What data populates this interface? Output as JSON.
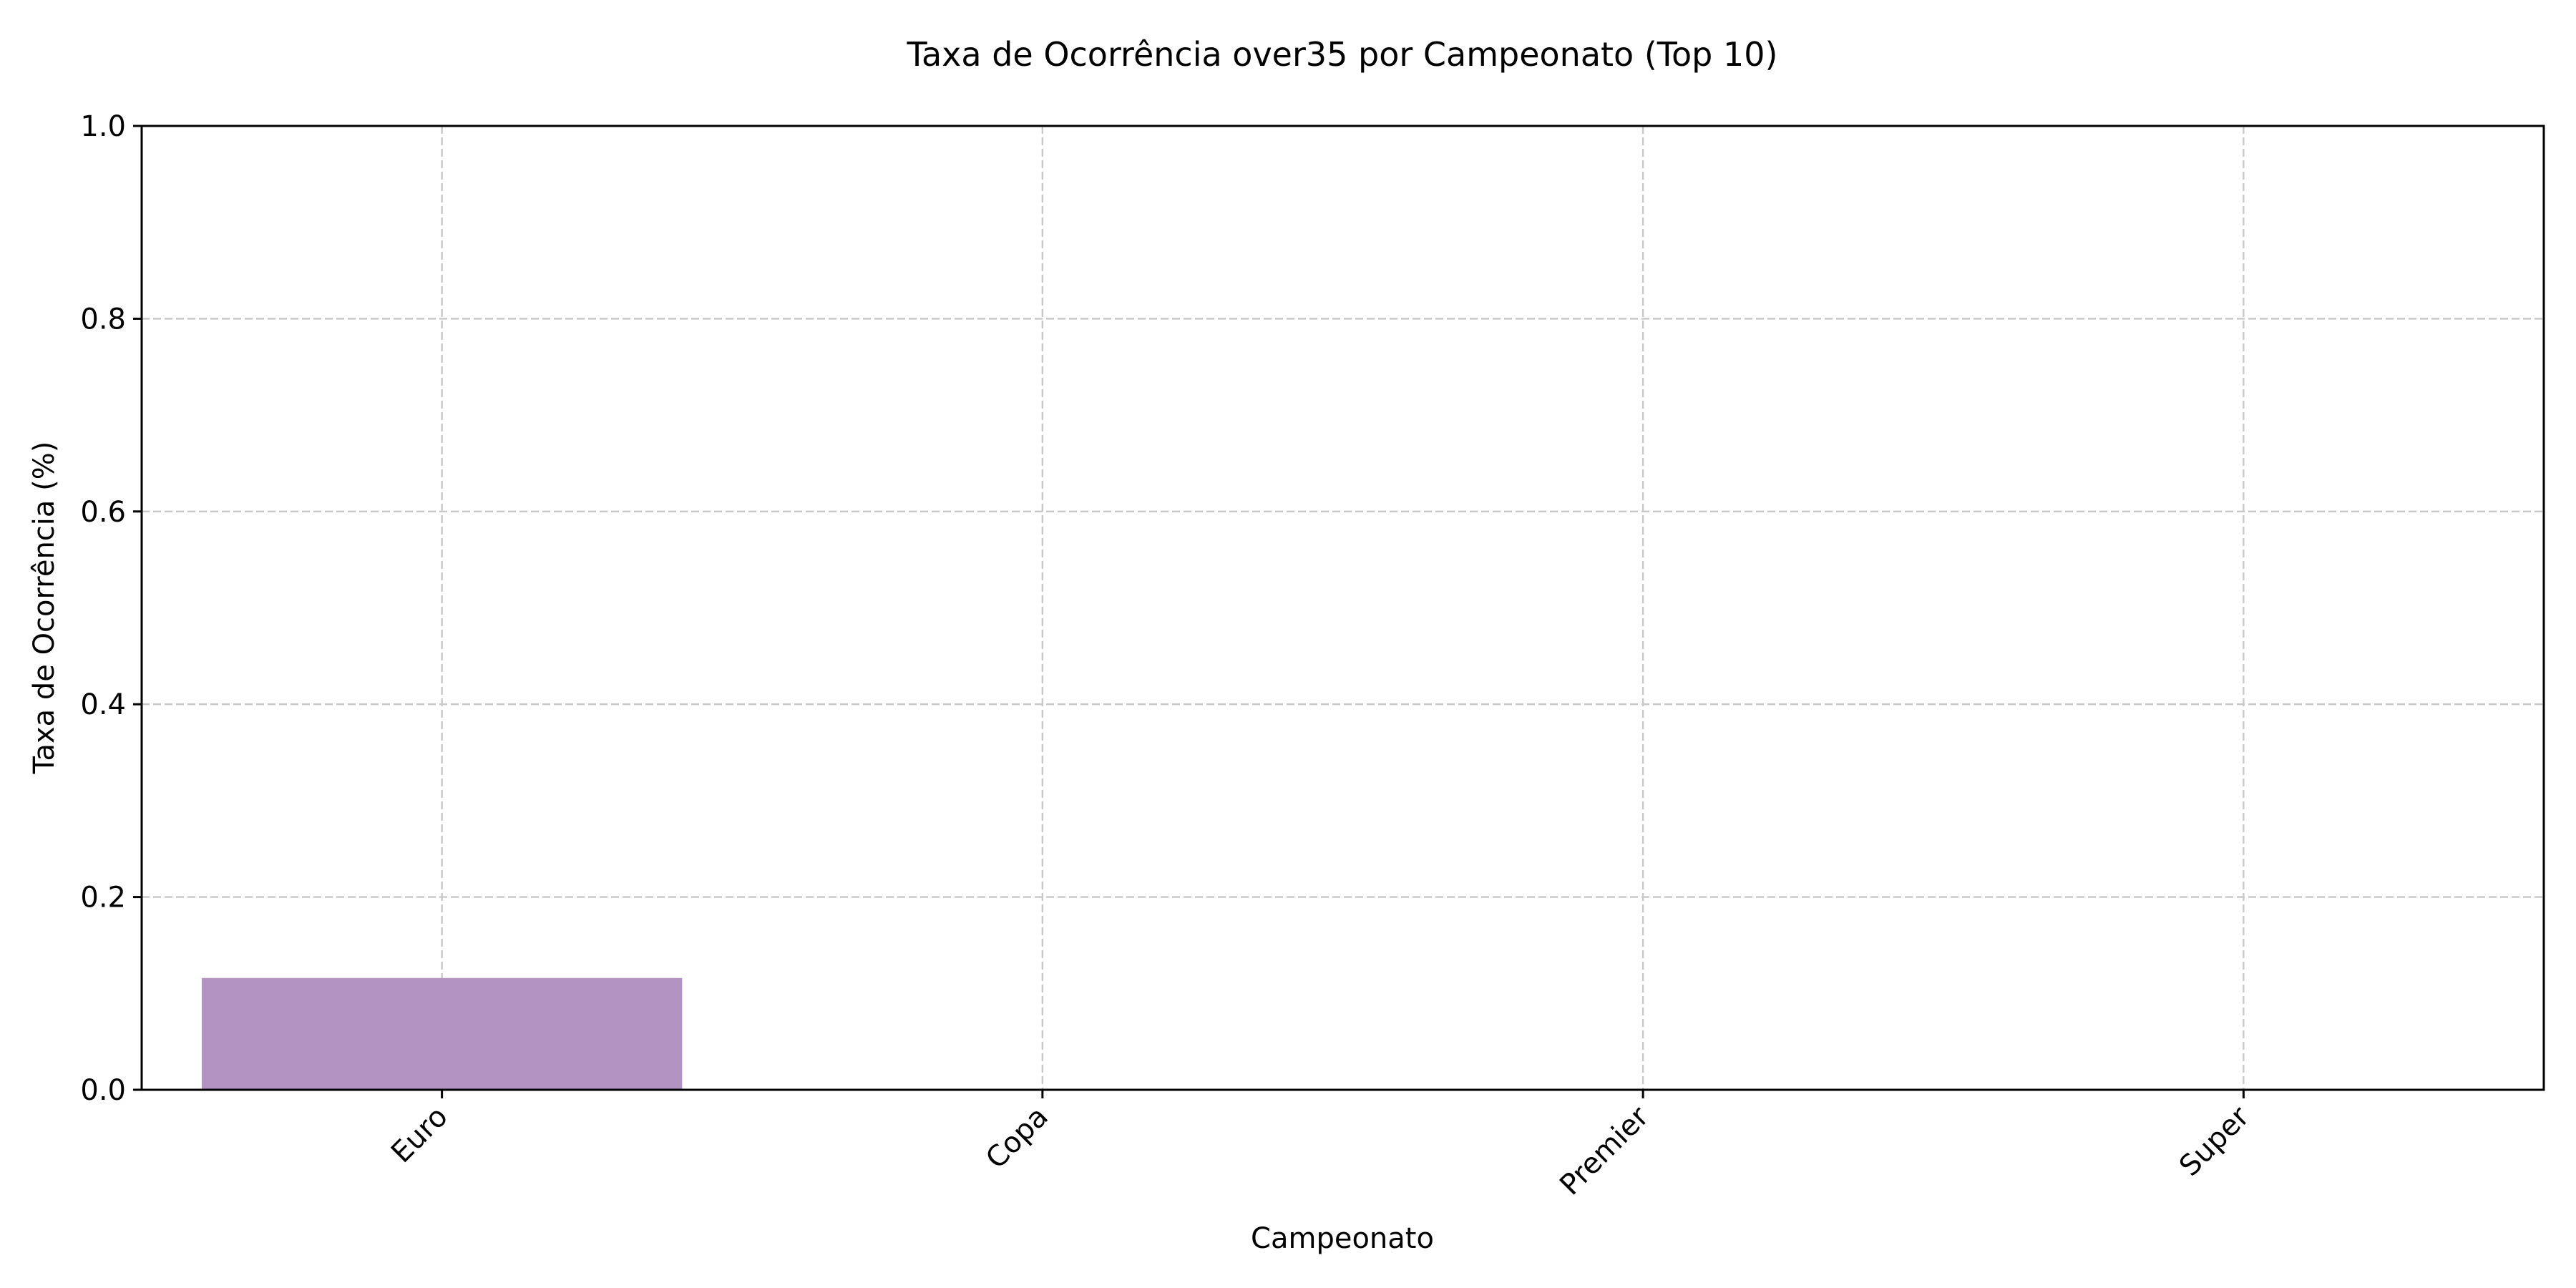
{
  "chart_data": {
    "type": "bar",
    "title": "Taxa de Ocorrência over35 por Campeonato (Top 10)",
    "xlabel": "Campeonato",
    "ylabel": "Taxa de Ocorrência (%)",
    "categories": [
      "Euro",
      "Copa",
      "Premier",
      "Super"
    ],
    "values": [
      0.116,
      0.0,
      0.0,
      0.0
    ],
    "ylim": [
      0.0,
      1.0
    ],
    "yticks": [
      "0.0",
      "0.2",
      "0.4",
      "0.6",
      "0.8",
      "1.0"
    ],
    "grid": true,
    "legend": "none",
    "colors": {
      "bar": "#b393c2",
      "grid": "#c8c8c8",
      "axis": "#000000"
    }
  }
}
